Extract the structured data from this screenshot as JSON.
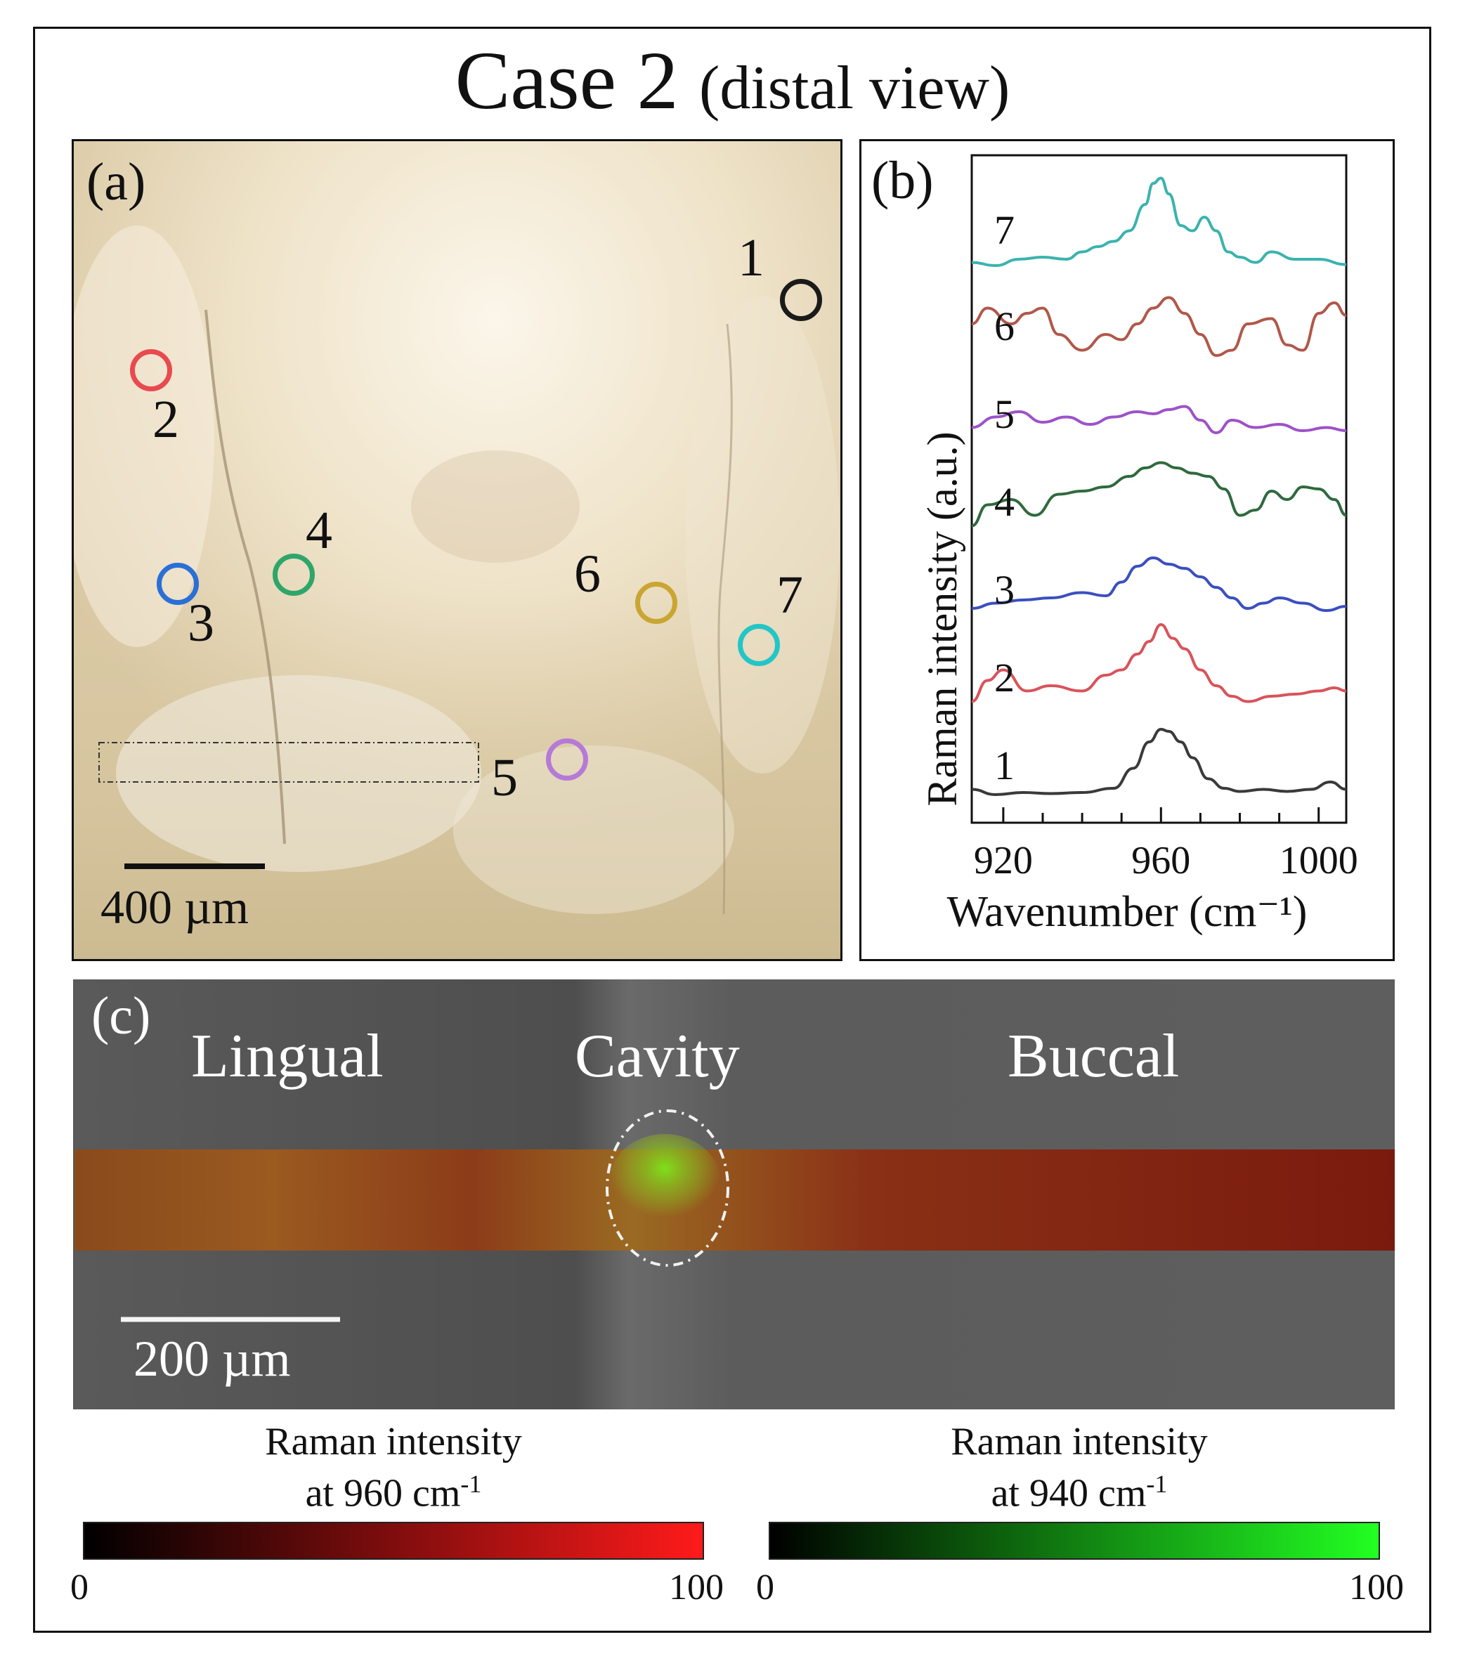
{
  "title": {
    "main": "Case 2",
    "sub": "(distal view)"
  },
  "panel_a": {
    "label": "(a)",
    "scalebar": "400 µm",
    "points": [
      {
        "id": "1",
        "color": "#1a1a1a"
      },
      {
        "id": "2",
        "color": "#e84a4f"
      },
      {
        "id": "3",
        "color": "#2a6fd6"
      },
      {
        "id": "4",
        "color": "#2ea66a"
      },
      {
        "id": "5",
        "color": "#b57ad8"
      },
      {
        "id": "6",
        "color": "#c9a632"
      },
      {
        "id": "7",
        "color": "#22c6c6"
      }
    ]
  },
  "panel_b": {
    "label": "(b)",
    "chart_data": {
      "type": "line",
      "title": "",
      "xlabel": "Wavenumber (cm⁻¹)",
      "ylabel": "Raman intensity (a.u.)",
      "xlim": [
        912,
        1007
      ],
      "xticks": [
        "920",
        "960",
        "1000"
      ],
      "series": [
        {
          "name": "1",
          "color": "#3a3a3a",
          "offset": 0,
          "x": [
            912,
            918,
            925,
            932,
            940,
            948,
            953,
            957,
            960,
            962,
            965,
            968,
            972,
            976,
            980,
            986,
            992,
            998,
            1003,
            1007
          ],
          "y": [
            0.05,
            0,
            0.02,
            0.01,
            0.02,
            0.06,
            0.25,
            0.5,
            0.62,
            0.6,
            0.5,
            0.35,
            0.15,
            0.06,
            0.03,
            0.05,
            0.03,
            0.05,
            0.12,
            0.05
          ]
        },
        {
          "name": "2",
          "color": "#d9535a",
          "offset": 1,
          "x": [
            912,
            916,
            920,
            926,
            932,
            940,
            946,
            950,
            954,
            957,
            960,
            963,
            966,
            970,
            974,
            978,
            982,
            988,
            994,
            1000,
            1004,
            1007
          ],
          "y": [
            0.05,
            0.25,
            0.35,
            0.15,
            0.2,
            0.15,
            0.3,
            0.35,
            0.5,
            0.62,
            0.78,
            0.65,
            0.55,
            0.35,
            0.2,
            0.1,
            0.05,
            0.1,
            0.12,
            0.15,
            0.18,
            0.15
          ]
        },
        {
          "name": "3",
          "color": "#3b4fc0",
          "offset": 2,
          "x": [
            912,
            918,
            925,
            932,
            940,
            946,
            950,
            954,
            958,
            962,
            966,
            970,
            974,
            978,
            982,
            986,
            990,
            996,
            1002,
            1007
          ],
          "y": [
            0.1,
            0.15,
            0.18,
            0.2,
            0.25,
            0.22,
            0.35,
            0.5,
            0.58,
            0.52,
            0.48,
            0.4,
            0.3,
            0.2,
            0.1,
            0.15,
            0.2,
            0.15,
            0.08,
            0.12
          ]
        },
        {
          "name": "4",
          "color": "#2e6a3e",
          "offset": 3,
          "x": [
            912,
            916,
            922,
            928,
            934,
            940,
            946,
            952,
            956,
            960,
            964,
            968,
            972,
            976,
            980,
            984,
            988,
            992,
            996,
            1000,
            1004,
            1007
          ],
          "y": [
            0.05,
            0.25,
            0.3,
            0.15,
            0.35,
            0.38,
            0.42,
            0.52,
            0.6,
            0.65,
            0.6,
            0.55,
            0.52,
            0.4,
            0.15,
            0.2,
            0.38,
            0.3,
            0.42,
            0.4,
            0.3,
            0.15
          ]
        },
        {
          "name": "5",
          "color": "#9d52c9",
          "offset": 4,
          "x": [
            912,
            918,
            924,
            930,
            936,
            942,
            948,
            954,
            958,
            962,
            966,
            970,
            974,
            978,
            984,
            990,
            996,
            1002,
            1007
          ],
          "y": [
            0.15,
            0.25,
            0.3,
            0.2,
            0.25,
            0.18,
            0.25,
            0.3,
            0.28,
            0.32,
            0.35,
            0.22,
            0.1,
            0.22,
            0.15,
            0.18,
            0.12,
            0.15,
            0.12
          ]
        },
        {
          "name": "6",
          "color": "#b0584a",
          "offset": 5,
          "x": [
            912,
            916,
            922,
            926,
            930,
            934,
            940,
            946,
            950,
            954,
            958,
            962,
            966,
            970,
            974,
            978,
            982,
            988,
            992,
            996,
            1000,
            1004,
            1007
          ],
          "y": [
            0.3,
            0.45,
            0.3,
            0.4,
            0.45,
            0.2,
            0.05,
            0.2,
            0.15,
            0.3,
            0.45,
            0.55,
            0.4,
            0.2,
            0,
            0.05,
            0.3,
            0.35,
            0.1,
            0.05,
            0.4,
            0.5,
            0.38
          ]
        },
        {
          "name": "7",
          "color": "#3bb3ae",
          "offset": 6,
          "x": [
            912,
            918,
            924,
            930,
            936,
            940,
            944,
            948,
            952,
            956,
            958,
            960,
            962,
            965,
            968,
            971,
            974,
            977,
            980,
            984,
            988,
            994,
            1000,
            1007
          ],
          "y": [
            0.05,
            0.02,
            0.08,
            0.1,
            0.08,
            0.15,
            0.2,
            0.25,
            0.35,
            0.6,
            0.8,
            0.85,
            0.7,
            0.4,
            0.35,
            0.48,
            0.35,
            0.15,
            0.1,
            0.05,
            0.15,
            0.08,
            0.08,
            0.03
          ]
        }
      ]
    }
  },
  "panel_c": {
    "label": "(c)",
    "regions": [
      "Lingual",
      "Cavity",
      "Buccal"
    ],
    "scalebar": "200 µm"
  },
  "colorbars": [
    {
      "title_line1": "Raman intensity",
      "title_line2": "at 960 cm",
      "superscript": "-1",
      "min": "0",
      "max": "100",
      "color": "#ff1a1a"
    },
    {
      "title_line1": "Raman intensity",
      "title_line2": "at 940 cm",
      "superscript": "-1",
      "min": "0",
      "max": "100",
      "color": "#22ff22"
    }
  ]
}
